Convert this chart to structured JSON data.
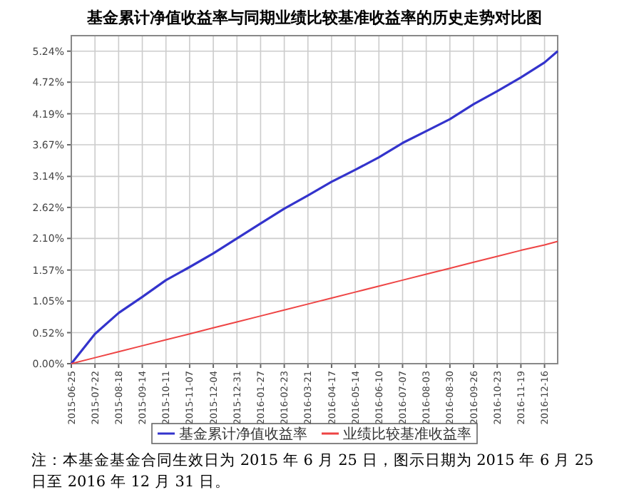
{
  "chart_data": {
    "type": "line",
    "title": "基金累计净值收益率与同期业绩比较基准收益率的历史走势对比图",
    "annotations": [
      "注：本基金基金合同生效日为 2015 年 6 月 25 日，图示日期为 2015 年 6 月 25 日至 2016 年 12 月 31 日。"
    ],
    "x": [
      "2015-06-25",
      "2015-07-22",
      "2015-08-18",
      "2015-09-14",
      "2015-10-11",
      "2015-11-07",
      "2015-12-04",
      "2015-12-31",
      "2016-01-27",
      "2016-02-23",
      "2016-03-21",
      "2016-04-17",
      "2016-05-14",
      "2016-06-10",
      "2016-07-07",
      "2016-08-03",
      "2016-08-30",
      "2016-09-26",
      "2016-10-23",
      "2016-11-19",
      "2016-12-16",
      "2016-12-31"
    ],
    "series": [
      {
        "name": "基金累计净值收益率",
        "color": "#3333cc",
        "values": [
          0,
          0.5,
          0.85,
          1.12,
          1.4,
          1.62,
          1.85,
          2.1,
          2.35,
          2.6,
          2.82,
          3.05,
          3.25,
          3.46,
          3.7,
          3.9,
          4.1,
          4.35,
          4.57,
          4.8,
          5.05,
          5.24
        ]
      },
      {
        "name": "业绩比较基准收益率",
        "color": "#ee4444",
        "values": [
          0,
          0.1,
          0.2,
          0.3,
          0.4,
          0.5,
          0.6,
          0.7,
          0.8,
          0.9,
          1.0,
          1.1,
          1.2,
          1.3,
          1.4,
          1.5,
          1.6,
          1.7,
          1.8,
          1.9,
          1.99,
          2.05
        ]
      }
    ],
    "xlim": [
      "2015-06-25",
      "2016-12-31"
    ],
    "xticks": [
      "2015-06-25",
      "2015-07-22",
      "2015-08-18",
      "2015-09-14",
      "2015-10-11",
      "2015-11-07",
      "2015-12-04",
      "2015-12-31",
      "2016-01-27",
      "2016-02-23",
      "2016-03-21",
      "2016-04-17",
      "2016-05-14",
      "2016-06-10",
      "2016-07-07",
      "2016-08-03",
      "2016-08-30",
      "2016-09-26",
      "2016-10-23",
      "2016-11-19",
      "2016-12-16"
    ],
    "ylim": [
      0,
      5.5
    ],
    "yticks": [
      {
        "value": 0,
        "label": "0.00%"
      },
      {
        "value": 0.52,
        "label": "0.52%"
      },
      {
        "value": 1.05,
        "label": "1.05%"
      },
      {
        "value": 1.57,
        "label": "1.57%"
      },
      {
        "value": 2.1,
        "label": "2.10%"
      },
      {
        "value": 2.62,
        "label": "2.62%"
      },
      {
        "value": 3.14,
        "label": "3.14%"
      },
      {
        "value": 3.67,
        "label": "3.67%"
      },
      {
        "value": 4.19,
        "label": "4.19%"
      },
      {
        "value": 4.72,
        "label": "4.72%"
      },
      {
        "value": 5.24,
        "label": "5.24%"
      }
    ],
    "grid": true,
    "legend": "bottom",
    "marker": "none",
    "line_style": "solid"
  }
}
